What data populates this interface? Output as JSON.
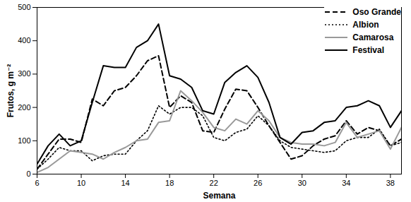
{
  "chart_data": {
    "type": "line",
    "x_label": "Semana",
    "y_label": "Frutos, g m⁻²",
    "x": [
      6,
      7,
      8,
      9,
      10,
      11,
      12,
      13,
      14,
      15,
      16,
      17,
      18,
      19,
      20,
      21,
      22,
      23,
      24,
      25,
      26,
      27,
      28,
      29,
      30,
      31,
      32,
      33,
      34,
      35,
      36,
      37,
      38,
      39
    ],
    "xlim": [
      6,
      39
    ],
    "xticks": [
      6,
      10,
      14,
      18,
      22,
      26,
      30,
      34,
      38
    ],
    "ylim": [
      0,
      500
    ],
    "yticks": [
      0,
      100,
      200,
      300,
      400,
      500
    ],
    "grid": false,
    "legend": "top-right",
    "series": [
      {
        "name": "Oso Grande",
        "color": "#000000",
        "line_style": "dashed",
        "values": [
          15,
          60,
          105,
          105,
          95,
          225,
          205,
          250,
          260,
          295,
          340,
          355,
          200,
          235,
          215,
          130,
          125,
          195,
          255,
          250,
          200,
          145,
          95,
          45,
          55,
          85,
          105,
          115,
          160,
          120,
          140,
          130,
          85,
          105
        ]
      },
      {
        "name": "Albion",
        "color": "#000000",
        "line_style": "dotted",
        "values": [
          15,
          45,
          80,
          70,
          70,
          40,
          55,
          60,
          60,
          100,
          130,
          205,
          180,
          200,
          200,
          175,
          110,
          100,
          125,
          135,
          175,
          145,
          100,
          80,
          75,
          70,
          65,
          70,
          100,
          110,
          110,
          135,
          85,
          95
        ]
      },
      {
        "name": "Camarosa",
        "color": "#999999",
        "line_style": "solid",
        "values": [
          5,
          20,
          45,
          70,
          65,
          60,
          45,
          65,
          80,
          100,
          105,
          155,
          160,
          250,
          220,
          185,
          140,
          130,
          165,
          150,
          190,
          160,
          110,
          95,
          90,
          90,
          85,
          95,
          155,
          110,
          120,
          130,
          75,
          140
        ]
      },
      {
        "name": "Festival",
        "color": "#000000",
        "line_style": "solid",
        "values": [
          30,
          85,
          120,
          85,
          100,
          215,
          325,
          320,
          320,
          380,
          400,
          450,
          295,
          285,
          260,
          190,
          180,
          275,
          305,
          325,
          290,
          215,
          110,
          90,
          125,
          130,
          155,
          160,
          200,
          205,
          220,
          205,
          140,
          190
        ]
      }
    ]
  }
}
